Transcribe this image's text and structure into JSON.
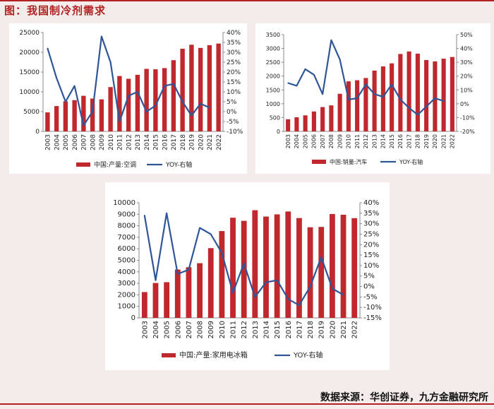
{
  "header": {
    "title": "图：我国制冷剂需求"
  },
  "footer": {
    "source": "数据来源：华创证券，九方金融研究所"
  },
  "colors": {
    "bar": "#c0282d",
    "line": "#2f5597",
    "accent": "#b22222"
  },
  "chart_data": [
    {
      "type": "bar",
      "categories": [
        "2003",
        "2004",
        "2005",
        "2006",
        "2007",
        "2008",
        "2009",
        "2010",
        "2011",
        "2012",
        "2013",
        "2014",
        "2015",
        "2016",
        "2017",
        "2018",
        "2019",
        "2020",
        "2021",
        "2022"
      ],
      "series": [
        {
          "name": "中国:产量:空调",
          "axis": "left",
          "values": [
            4800,
            6400,
            7600,
            7900,
            9000,
            8300,
            8100,
            11200,
            14000,
            13300,
            14300,
            15800,
            15700,
            16000,
            18000,
            20900,
            21900,
            21100,
            21800,
            22200
          ]
        },
        {
          "name": "YOY-右轴",
          "axis": "right",
          "type": "line",
          "values": [
            32,
            17,
            5,
            13,
            -7,
            0,
            38,
            25,
            -5,
            8,
            10,
            0,
            3,
            13,
            14,
            5,
            -2,
            4,
            2,
            null
          ]
        }
      ],
      "yleft": {
        "min": 0,
        "max": 25000,
        "ticks": [
          "0",
          "5000",
          "10000",
          "15000",
          "20000",
          "25000"
        ]
      },
      "yright": {
        "min": -10,
        "max": 40,
        "ticks": [
          "-10%",
          "-5%",
          "0%",
          "5%",
          "10%",
          "15%",
          "20%",
          "25%",
          "30%",
          "35%",
          "40%"
        ]
      }
    },
    {
      "type": "bar",
      "categories": [
        "2003",
        "2004",
        "2005",
        "2006",
        "2007",
        "2008",
        "2009",
        "2010",
        "2011",
        "2012",
        "2013",
        "2014",
        "2015",
        "2016",
        "2017",
        "2018",
        "2019",
        "2020",
        "2021",
        "2022"
      ],
      "series": [
        {
          "name": "中国:销量:汽车",
          "axis": "left",
          "values": [
            440,
            510,
            580,
            720,
            880,
            940,
            1360,
            1810,
            1850,
            1930,
            2200,
            2350,
            2460,
            2800,
            2890,
            2810,
            2580,
            2530,
            2630,
            2690
          ]
        },
        {
          "name": "YOY-右轴",
          "axis": "right",
          "type": "line",
          "values": [
            15,
            13,
            25,
            21,
            7,
            46,
            32,
            3,
            4,
            14,
            7,
            5,
            14,
            3,
            -3,
            -8,
            -2,
            4,
            2,
            null
          ]
        }
      ],
      "yleft": {
        "min": 0,
        "max": 3500,
        "ticks": [
          "0",
          "500",
          "1000",
          "1500",
          "2000",
          "2500",
          "3000",
          "3500"
        ]
      },
      "yright": {
        "min": -20,
        "max": 50,
        "ticks": [
          "-20%",
          "-10%",
          "0%",
          "10%",
          "20%",
          "30%",
          "40%",
          "50%"
        ]
      }
    },
    {
      "type": "bar",
      "categories": [
        "2003",
        "2004",
        "2005",
        "2006",
        "2007",
        "2008",
        "2009",
        "2010",
        "2011",
        "2012",
        "2013",
        "2014",
        "2015",
        "2016",
        "2017",
        "2018",
        "2019",
        "2020",
        "2021",
        "2022"
      ],
      "series": [
        {
          "name": "中国:产量:家用电冰箱",
          "axis": "left",
          "values": [
            2240,
            3030,
            3100,
            4200,
            4400,
            4750,
            6060,
            7540,
            8700,
            8430,
            9350,
            8800,
            8990,
            9240,
            8670,
            7870,
            7900,
            9020,
            8960,
            8660
          ]
        },
        {
          "name": "YOY-右轴",
          "axis": "right",
          "type": "line",
          "values": [
            34,
            3,
            35,
            6,
            8,
            28,
            25,
            16,
            -3,
            11,
            -5,
            2,
            3,
            -6,
            -9,
            0,
            14,
            -1,
            -4,
            null
          ]
        }
      ],
      "yleft": {
        "min": 0,
        "max": 10000,
        "ticks": [
          "0",
          "1000",
          "2000",
          "3000",
          "4000",
          "5000",
          "6000",
          "7000",
          "8000",
          "9000",
          "10000"
        ]
      },
      "yright": {
        "min": -15,
        "max": 40,
        "ticks": [
          "-15%",
          "-10%",
          "-5%",
          "0%",
          "5%",
          "10%",
          "15%",
          "20%",
          "25%",
          "30%",
          "35%",
          "40%"
        ]
      }
    }
  ]
}
